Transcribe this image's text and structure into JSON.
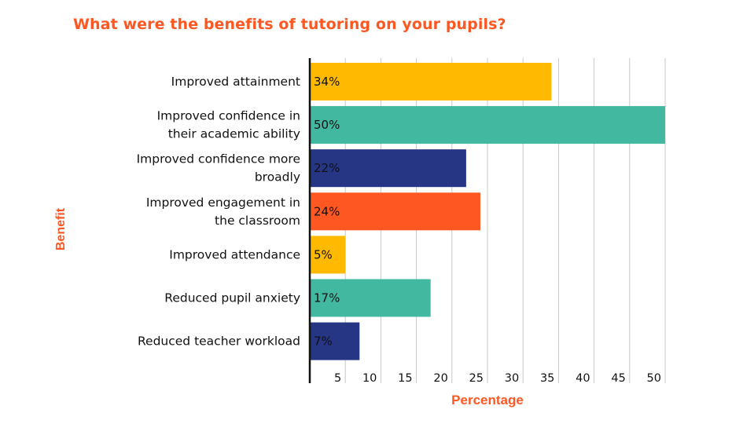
{
  "chart_data": {
    "type": "bar",
    "orientation": "horizontal",
    "title": "What were the benefits of tutoring on your pupils?",
    "xlabel": "Percentage",
    "ylabel": "Benefit",
    "xlim": [
      0,
      50
    ],
    "xticks": [
      5,
      10,
      15,
      20,
      25,
      30,
      35,
      40,
      45,
      50
    ],
    "grid": "vertical",
    "categories": [
      [
        "Improved attainment"
      ],
      [
        "Improved confidence in",
        "their academic ability"
      ],
      [
        "Improved confidence more",
        "broadly"
      ],
      [
        "Improved engagement in",
        "the classroom"
      ],
      [
        "Improved attendance"
      ],
      [
        "Reduced pupil anxiety"
      ],
      [
        "Reduced teacher workload"
      ]
    ],
    "values": [
      34,
      50,
      22,
      24,
      5,
      17,
      7
    ],
    "data_labels": [
      "34%",
      "50%",
      "22%",
      "24%",
      "5%",
      "17%",
      "7%"
    ],
    "colors": [
      "#ffba00",
      "#42b8a0",
      "#263584",
      "#ff5722",
      "#ffba00",
      "#42b8a0",
      "#263584"
    ]
  }
}
